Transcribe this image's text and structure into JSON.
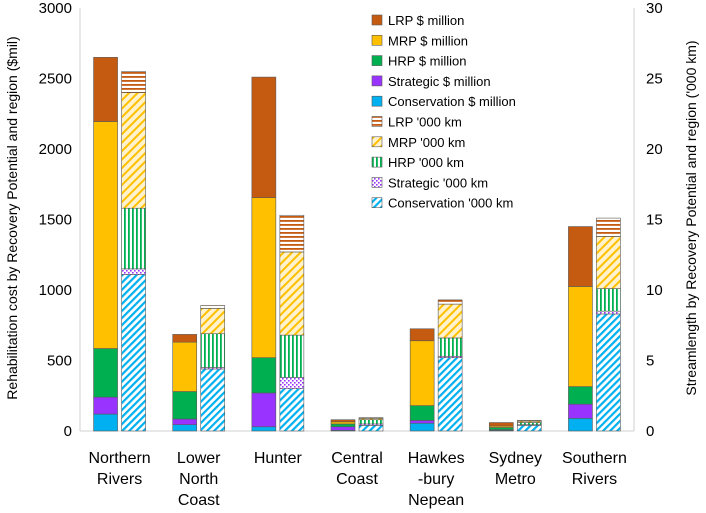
{
  "chart_data": {
    "type": "bar",
    "subtype": "stacked-grouped-dual-axis",
    "categories": [
      [
        "Northern",
        "Rivers"
      ],
      [
        "Lower",
        "North",
        "Coast"
      ],
      [
        "Hunter"
      ],
      [
        "Central",
        "Coast"
      ],
      [
        "Hawkes",
        "-bury",
        "Nepean"
      ],
      [
        "Sydney",
        "Metro"
      ],
      [
        "Southern",
        "Rivers"
      ]
    ],
    "ylabel": "Rehabilitation cost by Recovery Potential and region ($mil)",
    "y2label": "Streamlength by Recovery Potential and region ('000 km)",
    "ylim": [
      0,
      3000
    ],
    "y2lim": [
      0,
      30
    ],
    "yticks": [
      "0",
      "500",
      "1000",
      "1500",
      "2000",
      "2500",
      "3000"
    ],
    "y2ticks": [
      "0",
      "5",
      "10",
      "15",
      "20",
      "25",
      "30"
    ],
    "cost_series": [
      {
        "name": "Conservation $ million",
        "color": "#00b0f0",
        "pattern": "solid",
        "values": [
          120,
          45,
          30,
          5,
          55,
          5,
          90
        ]
      },
      {
        "name": "Strategic $ million",
        "color": "#9933ff",
        "pattern": "solid",
        "values": [
          120,
          40,
          240,
          25,
          20,
          5,
          100
        ]
      },
      {
        "name": "HRP $ million",
        "color": "#00b050",
        "pattern": "solid",
        "values": [
          345,
          195,
          250,
          20,
          105,
          15,
          125
        ]
      },
      {
        "name": "MRP $ million",
        "color": "#ffc000",
        "pattern": "solid",
        "values": [
          1610,
          350,
          1135,
          15,
          460,
          10,
          710
        ]
      },
      {
        "name": "LRP $ million",
        "color": "#c55a11",
        "pattern": "solid",
        "values": [
          455,
          55,
          855,
          15,
          85,
          25,
          425
        ]
      }
    ],
    "length_series": [
      {
        "name": "Conservation '000 km",
        "color": "#00b0f0",
        "pattern": "diagonal",
        "values": [
          11.1,
          4.4,
          3.0,
          0.4,
          5.2,
          0.4,
          8.3
        ]
      },
      {
        "name": "Strategic '000 km",
        "color": "#9933ff",
        "pattern": "dots",
        "values": [
          0.4,
          0.1,
          0.8,
          0.1,
          0.1,
          0.05,
          0.2
        ]
      },
      {
        "name": "HRP '000 km",
        "color": "#00b050",
        "pattern": "vertical",
        "values": [
          4.3,
          2.4,
          3.0,
          0.3,
          1.3,
          0.15,
          1.6
        ]
      },
      {
        "name": "MRP '000 km",
        "color": "#ffc000",
        "pattern": "diagonal-wide",
        "values": [
          8.2,
          1.8,
          5.9,
          0.1,
          2.4,
          0.1,
          3.7
        ]
      },
      {
        "name": "LRP '000 km",
        "color": "#c55a11",
        "pattern": "horizontal",
        "values": [
          1.5,
          0.2,
          2.6,
          0.05,
          0.3,
          0.05,
          1.3
        ]
      }
    ],
    "legend": [
      "LRP $ million",
      "MRP $ million",
      "HRP $ million",
      "Strategic $ million",
      "Conservation $ million",
      "LRP '000 km",
      "MRP '000 km",
      "HRP '000 km",
      "Strategic '000 km",
      "Conservation '000 km"
    ],
    "legend_position": "top-right",
    "grid": false
  }
}
